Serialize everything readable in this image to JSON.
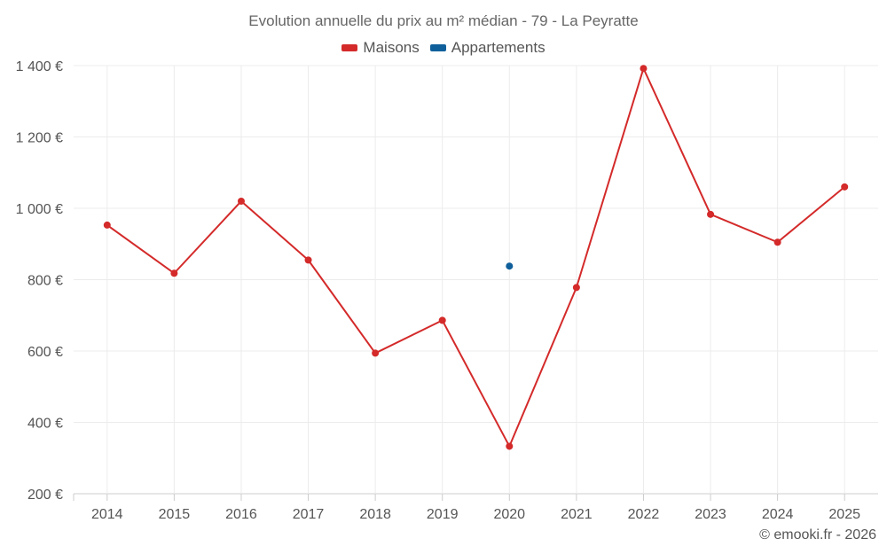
{
  "chart_data": {
    "type": "line",
    "title": "Evolution annuelle du prix au m² médian - 79 - La Peyratte",
    "categories": [
      "2014",
      "2015",
      "2016",
      "2017",
      "2018",
      "2019",
      "2020",
      "2021",
      "2022",
      "2023",
      "2024",
      "2025"
    ],
    "series": [
      {
        "name": "Maisons",
        "color": "#d42a2a",
        "values": [
          953,
          818,
          1020,
          855,
          594,
          686,
          333,
          778,
          1392,
          983,
          905,
          1060
        ]
      },
      {
        "name": "Appartements",
        "color": "#0f5f9b",
        "values": [
          null,
          null,
          null,
          null,
          null,
          null,
          838,
          null,
          null,
          null,
          null,
          null
        ]
      }
    ],
    "ylim": [
      200,
      1400
    ],
    "yticks": [
      200,
      400,
      600,
      800,
      1000,
      1200,
      1400
    ],
    "ytick_labels": [
      "200 €",
      "400 €",
      "600 €",
      "800 €",
      "1 000 €",
      "1 200 €",
      "1 400 €"
    ],
    "xlabel": "",
    "ylabel": "",
    "grid": true,
    "legend_position": "top-center"
  },
  "credit": "© emooki.fr - 2026"
}
